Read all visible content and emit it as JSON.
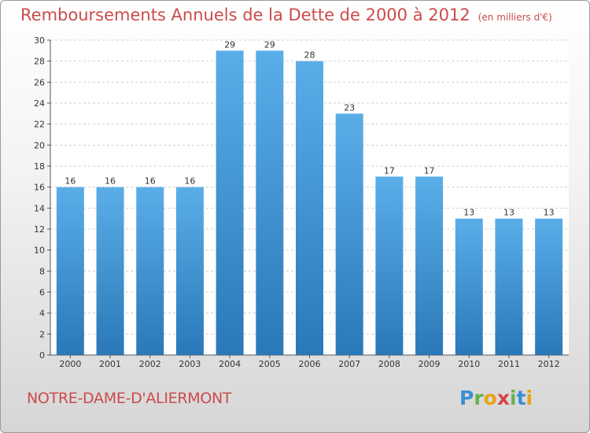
{
  "header": {
    "title": "Remboursements Annuels de la Dette de 2000 à 2012",
    "unit": "(en milliers d'€)"
  },
  "footer": {
    "place": "NOTRE-DAME-D'ALIERMONT",
    "logo_letters": [
      {
        "char": "P",
        "color": "#3a8fd4"
      },
      {
        "char": "r",
        "color": "#6ab04c"
      },
      {
        "char": "o",
        "color": "#e8a317"
      },
      {
        "char": "x",
        "color": "#d64545"
      },
      {
        "char": "i",
        "color": "#6ab04c"
      },
      {
        "char": "t",
        "color": "#3a8fd4"
      },
      {
        "char": "i",
        "color": "#e8a317"
      }
    ]
  },
  "chart_data": {
    "type": "bar",
    "categories": [
      "2000",
      "2001",
      "2002",
      "2003",
      "2004",
      "2005",
      "2006",
      "2007",
      "2008",
      "2009",
      "2010",
      "2011",
      "2012"
    ],
    "values": [
      16,
      16,
      16,
      16,
      29,
      29,
      28,
      23,
      17,
      17,
      13,
      13,
      13
    ],
    "ylim": [
      0,
      30
    ],
    "yticks": [
      0,
      2,
      4,
      6,
      8,
      10,
      12,
      14,
      16,
      18,
      20,
      22,
      24,
      26,
      28,
      30
    ],
    "grid": true,
    "bar_color_top": "#5aaee8",
    "bar_color_bottom": "#2a78b8",
    "title_color": "#cc4b4b"
  }
}
